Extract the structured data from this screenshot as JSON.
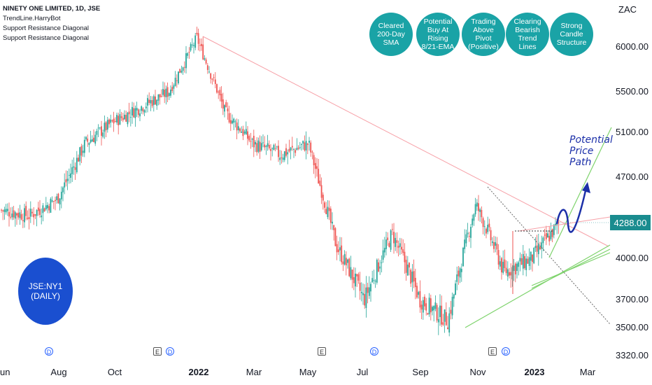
{
  "legend": {
    "title": "NINETY ONE LIMITED, 1D, JSE",
    "line2": "TrendLine.HarryBot",
    "line3": "Support Resistance Diagonal",
    "line4": "Support Resistance Diagonal"
  },
  "badges": [
    {
      "label": "Cleared 200-Day SMA"
    },
    {
      "label": "Potential Buy At Rising 8/21-EMA"
    },
    {
      "label": "Trading Above Pivot (Positive)"
    },
    {
      "label": "Clearing Bearish Trend Lines"
    },
    {
      "label": "Strong Candle Structure"
    }
  ],
  "ticker": {
    "line1": "JSE:NY1",
    "line2": "(DAILY)"
  },
  "unit": "ZAC",
  "current_price": "4288.00",
  "annotation": "Potential Price Path",
  "event_markers": [
    {
      "type": "D",
      "label": "D"
    },
    {
      "type": "E",
      "label": "E"
    },
    {
      "type": "D",
      "label": "D"
    },
    {
      "type": "E",
      "label": "E"
    },
    {
      "type": "D",
      "label": "D"
    },
    {
      "type": "E",
      "label": "E"
    },
    {
      "type": "D",
      "label": "D"
    }
  ],
  "colors": {
    "up": "#26a69a",
    "down": "#ef5350",
    "badge": "#1aa3a6",
    "ticker": "#1a4fd0",
    "path": "#1b2fa8"
  },
  "chart_data": {
    "type": "candlestick",
    "x_tick_labels": [
      "Jun",
      "Aug",
      "Oct",
      "2022",
      "Mar",
      "May",
      "Jul",
      "Sep",
      "Nov",
      "2023",
      "Mar"
    ],
    "y_tick_labels": [
      "6000.00",
      "5500.00",
      "5100.00",
      "4700.00",
      "4000.00",
      "3700.00",
      "3500.00",
      "3320.00"
    ],
    "y_ticks": [
      6000,
      5500,
      5100,
      4700,
      4000,
      3700,
      3500,
      3320
    ],
    "close_path": [
      [
        "Jun",
        4400
      ],
      [
        "Jul",
        4350
      ],
      [
        "Aug",
        4500
      ],
      [
        "Sep",
        5000
      ],
      [
        "Oct",
        5200
      ],
      [
        "Nov",
        5350
      ],
      [
        "Dec",
        5500
      ],
      [
        "2022",
        6100
      ],
      [
        "Feb",
        5300
      ],
      [
        "Mar",
        5000
      ],
      [
        "Apr",
        4900
      ],
      [
        "May",
        5000
      ],
      [
        "Jun",
        4100
      ],
      [
        "Jul",
        3700
      ],
      [
        "Aug",
        4200
      ],
      [
        "Sep",
        3700
      ],
      [
        "Oct",
        3550
      ],
      [
        "Nov",
        4450
      ],
      [
        "Dec",
        3900
      ],
      [
        "2023",
        4000
      ],
      [
        "Feb",
        4288
      ]
    ],
    "last_price": 4288
  }
}
